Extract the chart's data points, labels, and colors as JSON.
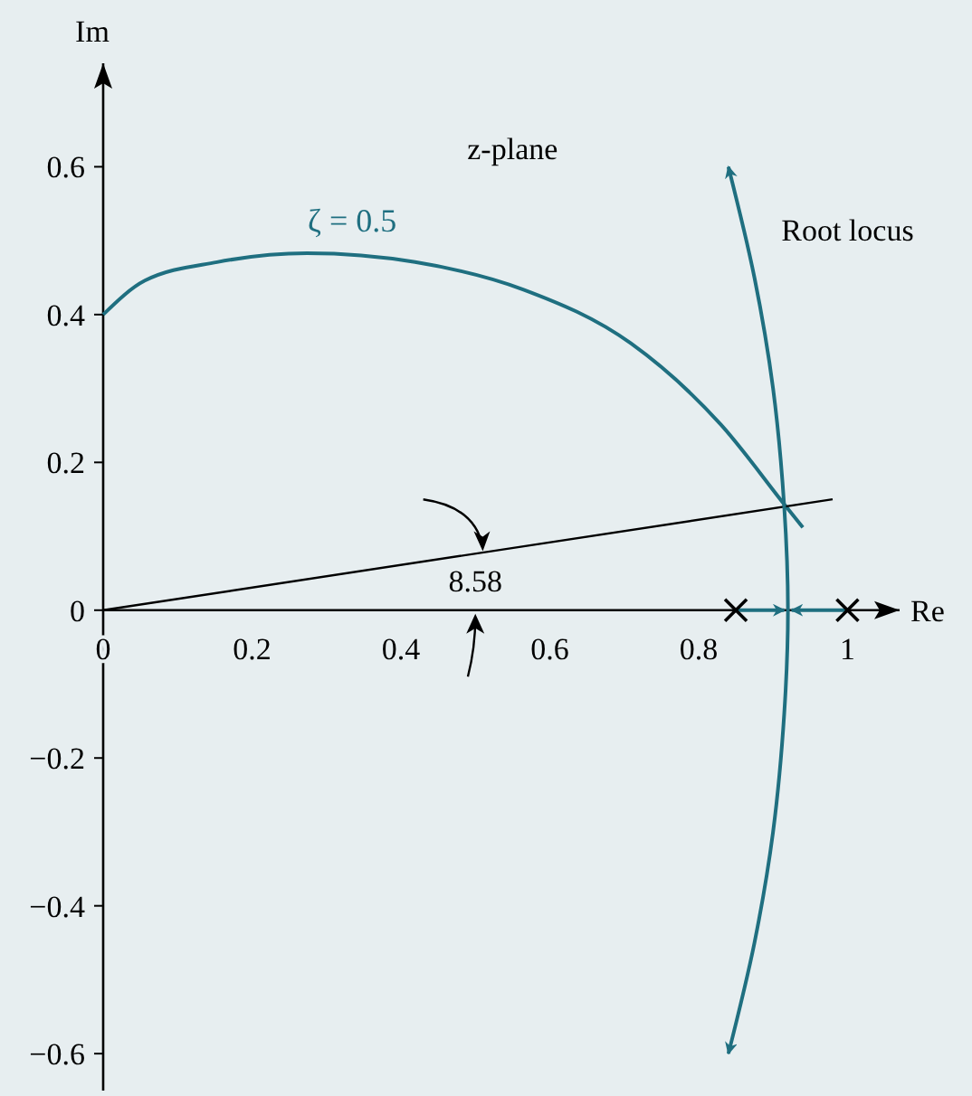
{
  "chart_data": {
    "type": "line",
    "xlabel": "Re",
    "ylabel": "Im",
    "xlim": [
      0,
      1.07
    ],
    "ylim": [
      -0.65,
      0.74
    ],
    "xticks": [
      0,
      0.2,
      0.4,
      0.6,
      0.8,
      1
    ],
    "yticks": [
      {
        "value": -0.6,
        "label": "−0.6"
      },
      {
        "value": -0.4,
        "label": "−0.4"
      },
      {
        "value": -0.2,
        "label": "−0.2"
      },
      0,
      0.2,
      0.4,
      0.6
    ],
    "grid": false,
    "annotations": [
      "z-plane",
      "Root locus",
      "8.58"
    ],
    "series": [
      {
        "name": "ζ = 0.5",
        "color": "#1f6f80",
        "x": [
          0,
          0.056,
          0.153,
          0.274,
          0.419,
          0.564,
          0.709,
          0.83,
          0.92,
          0.94
        ],
        "values": [
          0.4,
          0.446,
          0.471,
          0.483,
          0.471,
          0.434,
          0.361,
          0.251,
          0.137,
          0.112
        ]
      },
      {
        "color": "#000000",
        "x": [
          0,
          0.98
        ],
        "values": [
          0,
          0.15
        ]
      },
      {
        "color": "#1f6f80",
        "x": [
          0.84,
          0.875,
          0.9,
          0.915,
          0.92,
          0.915,
          0.9,
          0.875,
          0.84
        ],
        "values": [
          0.6,
          0.45,
          0.3,
          0.14,
          0,
          -0.14,
          -0.3,
          -0.45,
          -0.6
        ]
      },
      {
        "color": "#1f6f80",
        "x": [
          0.85,
          0.915
        ],
        "values": [
          0,
          0
        ]
      },
      {
        "color": "#1f6f80",
        "x": [
          1,
          0.925
        ],
        "values": [
          0,
          0
        ]
      },
      {
        "type": "scatter",
        "marker": "cross",
        "color": "#000000",
        "x": [
          0.85,
          1
        ],
        "values": [
          0,
          0
        ]
      }
    ]
  }
}
